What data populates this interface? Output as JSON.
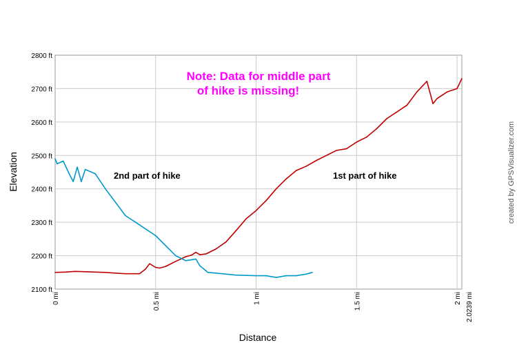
{
  "chart_data": {
    "type": "line",
    "xlabel": "Distance",
    "ylabel": "Elevation",
    "xlim": [
      0,
      2.0239
    ],
    "ylim": [
      2100,
      2800
    ],
    "x_ticks": [
      "0 mi",
      "0.5 mi",
      "1 mi",
      "1.5 mi",
      "2 mi"
    ],
    "x_tick_values": [
      0,
      0.5,
      1,
      1.5,
      2
    ],
    "x_end_tick": "2.0239 mi",
    "y_ticks": [
      "2100 ft",
      "2200 ft",
      "2300 ft",
      "2400 ft",
      "2500 ft",
      "2600 ft",
      "2700 ft",
      "2800 ft"
    ],
    "y_tick_values": [
      2100,
      2200,
      2300,
      2400,
      2500,
      2600,
      2700,
      2800
    ],
    "grid": true,
    "note_lines": [
      "Note: Data for middle part",
      "of hike is missing!"
    ],
    "credit": "created by GPSVisualizer.com",
    "series": [
      {
        "name": "1st part of hike",
        "color": "#c00000",
        "x": [
          0,
          0.05,
          0.1,
          0.15,
          0.2,
          0.25,
          0.3,
          0.35,
          0.42,
          0.45,
          0.47,
          0.5,
          0.52,
          0.55,
          0.6,
          0.65,
          0.68,
          0.7,
          0.72,
          0.75,
          0.8,
          0.85,
          0.9,
          0.95,
          1.0,
          1.05,
          1.1,
          1.15,
          1.2,
          1.25,
          1.3,
          1.35,
          1.4,
          1.45,
          1.5,
          1.55,
          1.6,
          1.65,
          1.7,
          1.75,
          1.8,
          1.85,
          1.88,
          1.9,
          1.95,
          2.0,
          2.0239
        ],
        "y": [
          2150,
          2151,
          2153,
          2152,
          2151,
          2150,
          2148,
          2146,
          2146,
          2160,
          2176,
          2165,
          2163,
          2168,
          2183,
          2197,
          2202,
          2210,
          2203,
          2205,
          2220,
          2241,
          2275,
          2310,
          2335,
          2365,
          2400,
          2430,
          2455,
          2468,
          2485,
          2500,
          2515,
          2520,
          2540,
          2555,
          2580,
          2610,
          2630,
          2650,
          2690,
          2722,
          2655,
          2670,
          2690,
          2700,
          2730
        ]
      },
      {
        "name": "2nd part of hike",
        "color": "#0099cc",
        "x": [
          0,
          0.01,
          0.04,
          0.07,
          0.09,
          0.11,
          0.13,
          0.15,
          0.2,
          0.25,
          0.3,
          0.35,
          0.4,
          0.45,
          0.5,
          0.55,
          0.6,
          0.65,
          0.7,
          0.72,
          0.74,
          0.76,
          0.8,
          0.9,
          1.0,
          1.05,
          1.1,
          1.15,
          1.2,
          1.25,
          1.28
        ],
        "y": [
          2490,
          2475,
          2483,
          2445,
          2422,
          2465,
          2422,
          2458,
          2445,
          2400,
          2360,
          2320,
          2300,
          2280,
          2260,
          2230,
          2200,
          2185,
          2190,
          2170,
          2160,
          2150,
          2148,
          2142,
          2140,
          2140,
          2135,
          2140,
          2140,
          2145,
          2150
        ]
      }
    ]
  }
}
